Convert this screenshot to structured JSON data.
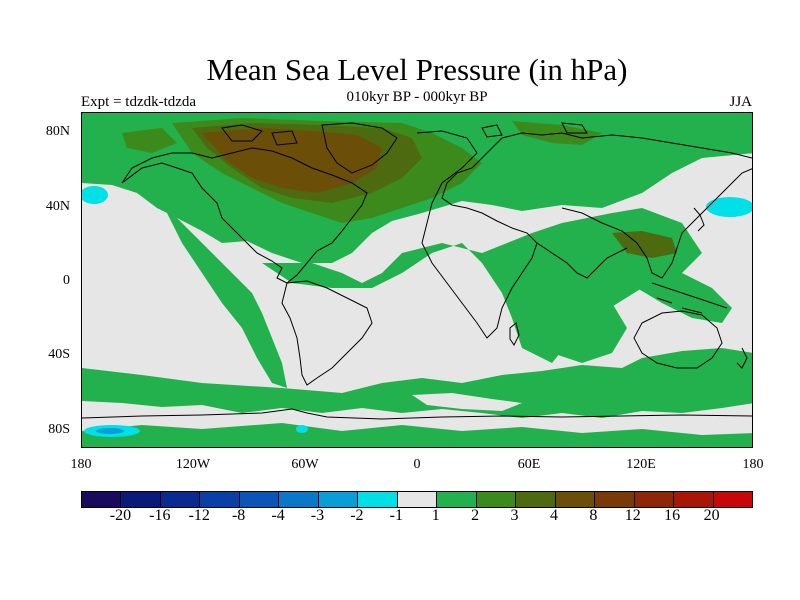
{
  "title": "Mean Sea Level Pressure (in hPa)",
  "subtitle": "010kyr BP - 000kyr BP",
  "left_label": "Expt = tdzdk-tdzda",
  "right_label": "JJA",
  "lat_labels": [
    "80N",
    "40N",
    "0",
    "40S",
    "80S"
  ],
  "lon_labels": [
    "180",
    "120W",
    "60W",
    "0",
    "60E",
    "120E",
    "180"
  ],
  "colorbar": {
    "colors": [
      "#1a0a5e",
      "#0a1a7a",
      "#0a2a92",
      "#0a3fa8",
      "#0a55b8",
      "#0a78c8",
      "#0a9ed8",
      "#00e0e6",
      "#e6e6e6",
      "#22b14c",
      "#3d8a1c",
      "#4d6a10",
      "#6b4e08",
      "#7a3a08",
      "#8f2608",
      "#a81608",
      "#c80808"
    ],
    "labels": [
      "-20",
      "-16",
      "-12",
      "-8",
      "-4",
      "-3",
      "-2",
      "-1",
      "1",
      "2",
      "3",
      "4",
      "8",
      "12",
      "16",
      "20"
    ]
  },
  "palette": {
    "neutral": "#e6e6e6",
    "green": "#22b14c",
    "dark_green": "#3d8a1c",
    "olive": "#4d6a10",
    "brown": "#6b4e08",
    "cyan": "#00e0e6",
    "light_blue": "#0a9ed8",
    "coast": "#000000"
  }
}
